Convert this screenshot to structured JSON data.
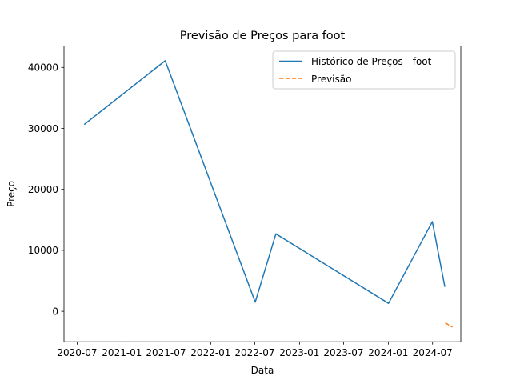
{
  "chart_data": {
    "type": "line",
    "title": "Previsão de Preços para foot",
    "xlabel": "Data",
    "ylabel": "Preço",
    "x_axis_type": "date",
    "xlim": [
      "2020-05-08",
      "2024-10-25"
    ],
    "ylim": [
      -5000,
      43500
    ],
    "x_ticks": [
      {
        "date": "2020-07-01",
        "label": "2020-07"
      },
      {
        "date": "2021-01-01",
        "label": "2021-01"
      },
      {
        "date": "2021-07-01",
        "label": "2021-07"
      },
      {
        "date": "2022-01-01",
        "label": "2022-01"
      },
      {
        "date": "2022-07-01",
        "label": "2022-07"
      },
      {
        "date": "2023-01-01",
        "label": "2023-01"
      },
      {
        "date": "2023-07-01",
        "label": "2023-07"
      },
      {
        "date": "2024-01-01",
        "label": "2024-01"
      },
      {
        "date": "2024-07-01",
        "label": "2024-07"
      }
    ],
    "y_ticks": [
      0,
      10000,
      20000,
      30000,
      40000
    ],
    "grid": false,
    "legend_position": "top-right",
    "series": [
      {
        "name": "Histórico de Preços - foot",
        "color": "#1f77b4",
        "style": "solid",
        "points": [
          {
            "x": "2020-08-01",
            "y": 30700
          },
          {
            "x": "2021-06-28",
            "y": 41100
          },
          {
            "x": "2022-07-03",
            "y": 1500
          },
          {
            "x": "2022-09-26",
            "y": 12700
          },
          {
            "x": "2024-01-02",
            "y": 1300
          },
          {
            "x": "2024-06-30",
            "y": 14700
          },
          {
            "x": "2024-08-20",
            "y": 4100
          }
        ]
      },
      {
        "name": "Previsão",
        "color": "#ff7f0e",
        "style": "dashed",
        "points": [
          {
            "x": "2024-08-22",
            "y": -1900
          },
          {
            "x": "2024-09-21",
            "y": -2600
          }
        ]
      }
    ]
  }
}
